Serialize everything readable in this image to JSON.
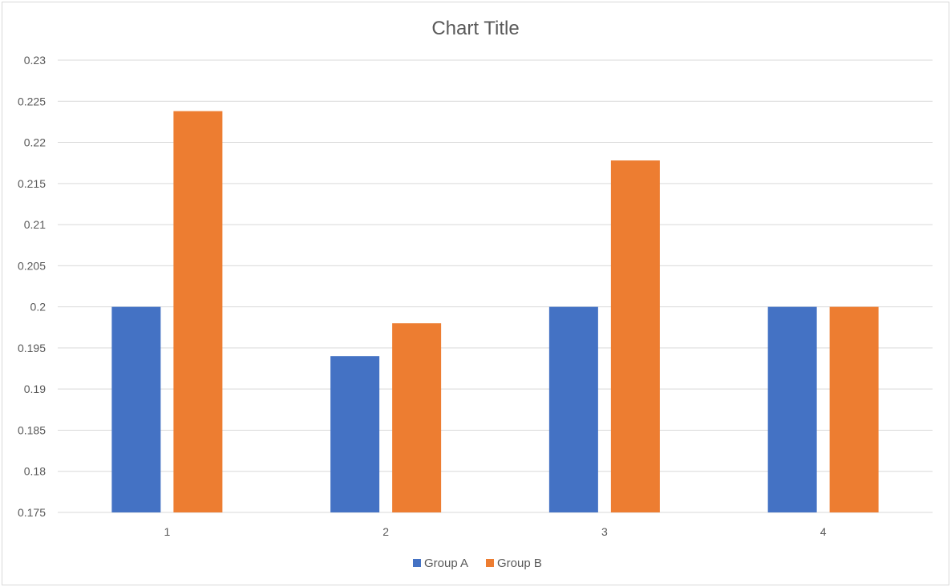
{
  "chart_data": {
    "type": "bar",
    "title": "Chart Title",
    "xlabel": "",
    "ylabel": "",
    "categories": [
      "1",
      "2",
      "3",
      "4"
    ],
    "series": [
      {
        "name": "Group A",
        "color": "#4472C4",
        "values": [
          0.2,
          0.194,
          0.2,
          0.2
        ]
      },
      {
        "name": "Group B",
        "color": "#ED7D31",
        "values": [
          0.2238,
          0.198,
          0.2178,
          0.2
        ]
      }
    ],
    "ylim": [
      0.175,
      0.23
    ],
    "yticks": [
      "0.175",
      "0.18",
      "0.185",
      "0.19",
      "0.195",
      "0.2",
      "0.205",
      "0.21",
      "0.215",
      "0.22",
      "0.225",
      "0.23"
    ],
    "grid": true,
    "legend": "bottom",
    "gridColor": "#d9d9d9",
    "textColor": "#595959"
  }
}
